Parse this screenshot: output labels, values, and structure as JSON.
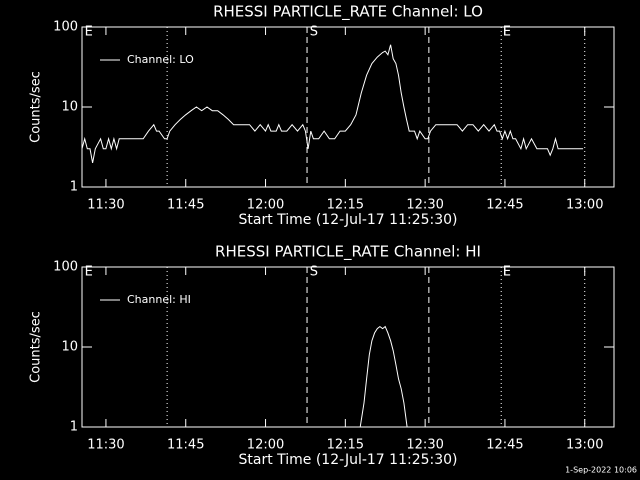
{
  "chart_data": [
    {
      "type": "line",
      "title": "RHESSI PARTICLE_RATE Channel: LO",
      "xlabel": "Start Time (12-Jul-17 11:25:30)",
      "ylabel": "Counts/sec",
      "x": [
        685.5,
        686,
        686.5,
        687,
        687.5,
        688,
        689,
        689.5,
        690,
        690.5,
        691,
        691.5,
        692,
        692.5,
        693,
        695,
        697,
        698,
        699,
        699.5,
        700,
        701,
        701.5,
        702,
        703,
        704,
        705,
        706,
        707,
        708,
        709,
        710,
        711,
        712,
        713,
        714,
        716,
        717,
        718,
        719,
        720,
        720.5,
        721,
        722,
        722.5,
        723,
        724,
        725,
        726,
        727,
        727.5,
        728,
        728.5,
        729,
        730,
        731,
        732,
        733,
        734,
        735,
        736,
        737,
        738,
        739,
        740,
        741,
        742,
        742.5,
        743,
        743.5,
        744,
        744.5,
        745,
        745.5,
        746,
        746.5,
        747,
        748,
        748.5,
        749,
        750,
        750.5,
        751,
        752,
        754,
        756,
        757,
        758,
        759,
        760,
        761,
        762,
        763,
        763.5,
        764,
        764.5,
        765,
        765.5,
        766,
        766.5,
        767,
        768,
        768.5,
        769,
        770,
        771,
        772,
        773,
        773.5,
        774,
        774.5,
        775,
        777,
        779.7
      ],
      "series": [
        {
          "name": "Channel: LO",
          "color": "#ffffff",
          "values": [
            3,
            4,
            3,
            3,
            2,
            3,
            4,
            3,
            3,
            4,
            3,
            4,
            3,
            4,
            4,
            4,
            4,
            5,
            6,
            5,
            5,
            4,
            4,
            5,
            6,
            7,
            8,
            9,
            10,
            9,
            10,
            9,
            9,
            8,
            7,
            6,
            6,
            6,
            5,
            6,
            5,
            6,
            5,
            5,
            6,
            5,
            5,
            6,
            5,
            6,
            5,
            3,
            5,
            4,
            4,
            5,
            4,
            4,
            5,
            5,
            6,
            8,
            15,
            25,
            35,
            42,
            48,
            50,
            45,
            60,
            40,
            35,
            25,
            15,
            10,
            7,
            5,
            5,
            4,
            5,
            4,
            4,
            5,
            6,
            6,
            6,
            5,
            6,
            6,
            5,
            6,
            5,
            6,
            5,
            5,
            4,
            5,
            4,
            5,
            4,
            4,
            3,
            4,
            3,
            4,
            3,
            3,
            3,
            2.5,
            3,
            4,
            3,
            3,
            3
          ]
        }
      ],
      "xlim": [
        685.5,
        785.5
      ],
      "xticks": [
        {
          "value": 690,
          "label": "11:30"
        },
        {
          "value": 705,
          "label": "11:45"
        },
        {
          "value": 720,
          "label": "12:00"
        },
        {
          "value": 735,
          "label": "12:15"
        },
        {
          "value": 750,
          "label": "12:30"
        },
        {
          "value": 765,
          "label": "12:45"
        },
        {
          "value": 780,
          "label": "13:00"
        }
      ],
      "ylim": [
        1,
        100
      ],
      "yticks": [
        1,
        10,
        100
      ],
      "log_y": true,
      "legend": "upper left",
      "vlines": [
        {
          "x": 701.5,
          "style": "dotted"
        },
        {
          "x": 727.8,
          "style": "dashed"
        },
        {
          "x": 750.7,
          "style": "dashed"
        },
        {
          "x": 764.3,
          "style": "dotted"
        },
        {
          "x": 780,
          "style": "dotted"
        }
      ],
      "annotations": [
        {
          "x": 686,
          "text": "E"
        },
        {
          "x": 728.3,
          "text": "S"
        },
        {
          "x": 764.6,
          "text": "E"
        }
      ]
    },
    {
      "type": "line",
      "title": "RHESSI PARTICLE_RATE Channel: HI",
      "xlabel": "Start Time (12-Jul-17 11:25:30)",
      "ylabel": "Counts/sec",
      "x": [
        737.8,
        738.5,
        739,
        739.5,
        740,
        740.5,
        741,
        741.5,
        742,
        742.5,
        743,
        743.5,
        744,
        744.5,
        745,
        745.5,
        746,
        746.6
      ],
      "series": [
        {
          "name": "Channel: HI",
          "color": "#ffffff",
          "values": [
            1,
            2,
            4,
            8,
            12,
            15,
            17,
            18,
            17,
            18,
            15,
            12,
            9,
            6,
            4,
            3,
            2,
            1
          ]
        }
      ],
      "xlim": [
        685.5,
        785.5
      ],
      "xticks": [
        {
          "value": 690,
          "label": "11:30"
        },
        {
          "value": 705,
          "label": "11:45"
        },
        {
          "value": 720,
          "label": "12:00"
        },
        {
          "value": 735,
          "label": "12:15"
        },
        {
          "value": 750,
          "label": "12:30"
        },
        {
          "value": 765,
          "label": "12:45"
        },
        {
          "value": 780,
          "label": "13:00"
        }
      ],
      "ylim": [
        1,
        100
      ],
      "yticks": [
        1,
        10,
        100
      ],
      "log_y": true,
      "legend": "upper left",
      "vlines": [
        {
          "x": 701.5,
          "style": "dotted"
        },
        {
          "x": 727.8,
          "style": "dashed"
        },
        {
          "x": 750.7,
          "style": "dashed"
        },
        {
          "x": 764.3,
          "style": "dotted"
        },
        {
          "x": 780,
          "style": "dotted"
        }
      ],
      "annotations": [
        {
          "x": 686,
          "text": "E"
        },
        {
          "x": 728.3,
          "text": "S"
        },
        {
          "x": 764.6,
          "text": "E"
        }
      ]
    }
  ],
  "footer": "1-Sep-2022 10:06"
}
